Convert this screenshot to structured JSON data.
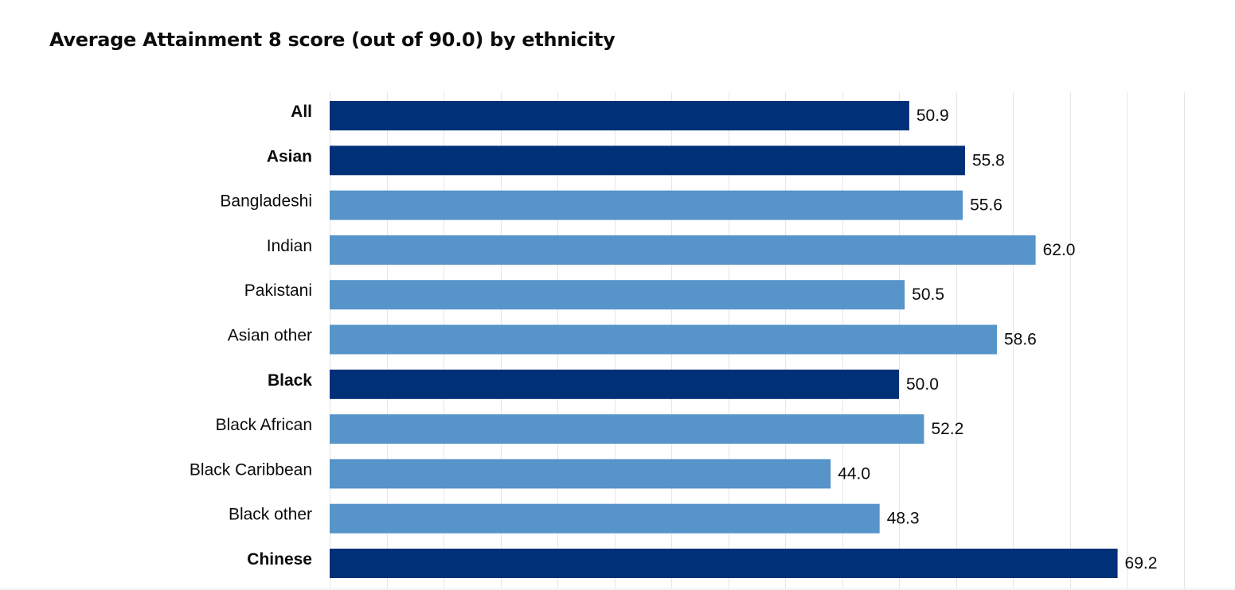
{
  "chart_data": {
    "type": "bar",
    "orientation": "horizontal",
    "title": "Average Attainment 8 score (out of 90.0) by ethnicity",
    "categories": [
      "All",
      "Asian",
      "Bangladeshi",
      "Indian",
      "Pakistani",
      "Asian other",
      "Black",
      "Black African",
      "Black Caribbean",
      "Black other",
      "Chinese"
    ],
    "values": [
      50.9,
      55.8,
      55.6,
      62.0,
      50.5,
      58.6,
      50.0,
      52.2,
      44.0,
      48.3,
      69.2
    ],
    "value_labels": [
      "50.9",
      "55.8",
      "55.6",
      "62.0",
      "50.5",
      "58.6",
      "50.0",
      "52.2",
      "44.0",
      "48.3",
      "69.2"
    ],
    "aggregate_categories": [
      "All",
      "Asian",
      "Black",
      "Chinese"
    ],
    "xlim": [
      0,
      75
    ],
    "grid_step": 5,
    "grid": true,
    "xlabel": "",
    "ylabel": "",
    "colors": {
      "aggregate": "#003078",
      "subgroup": "#5694ca"
    }
  }
}
